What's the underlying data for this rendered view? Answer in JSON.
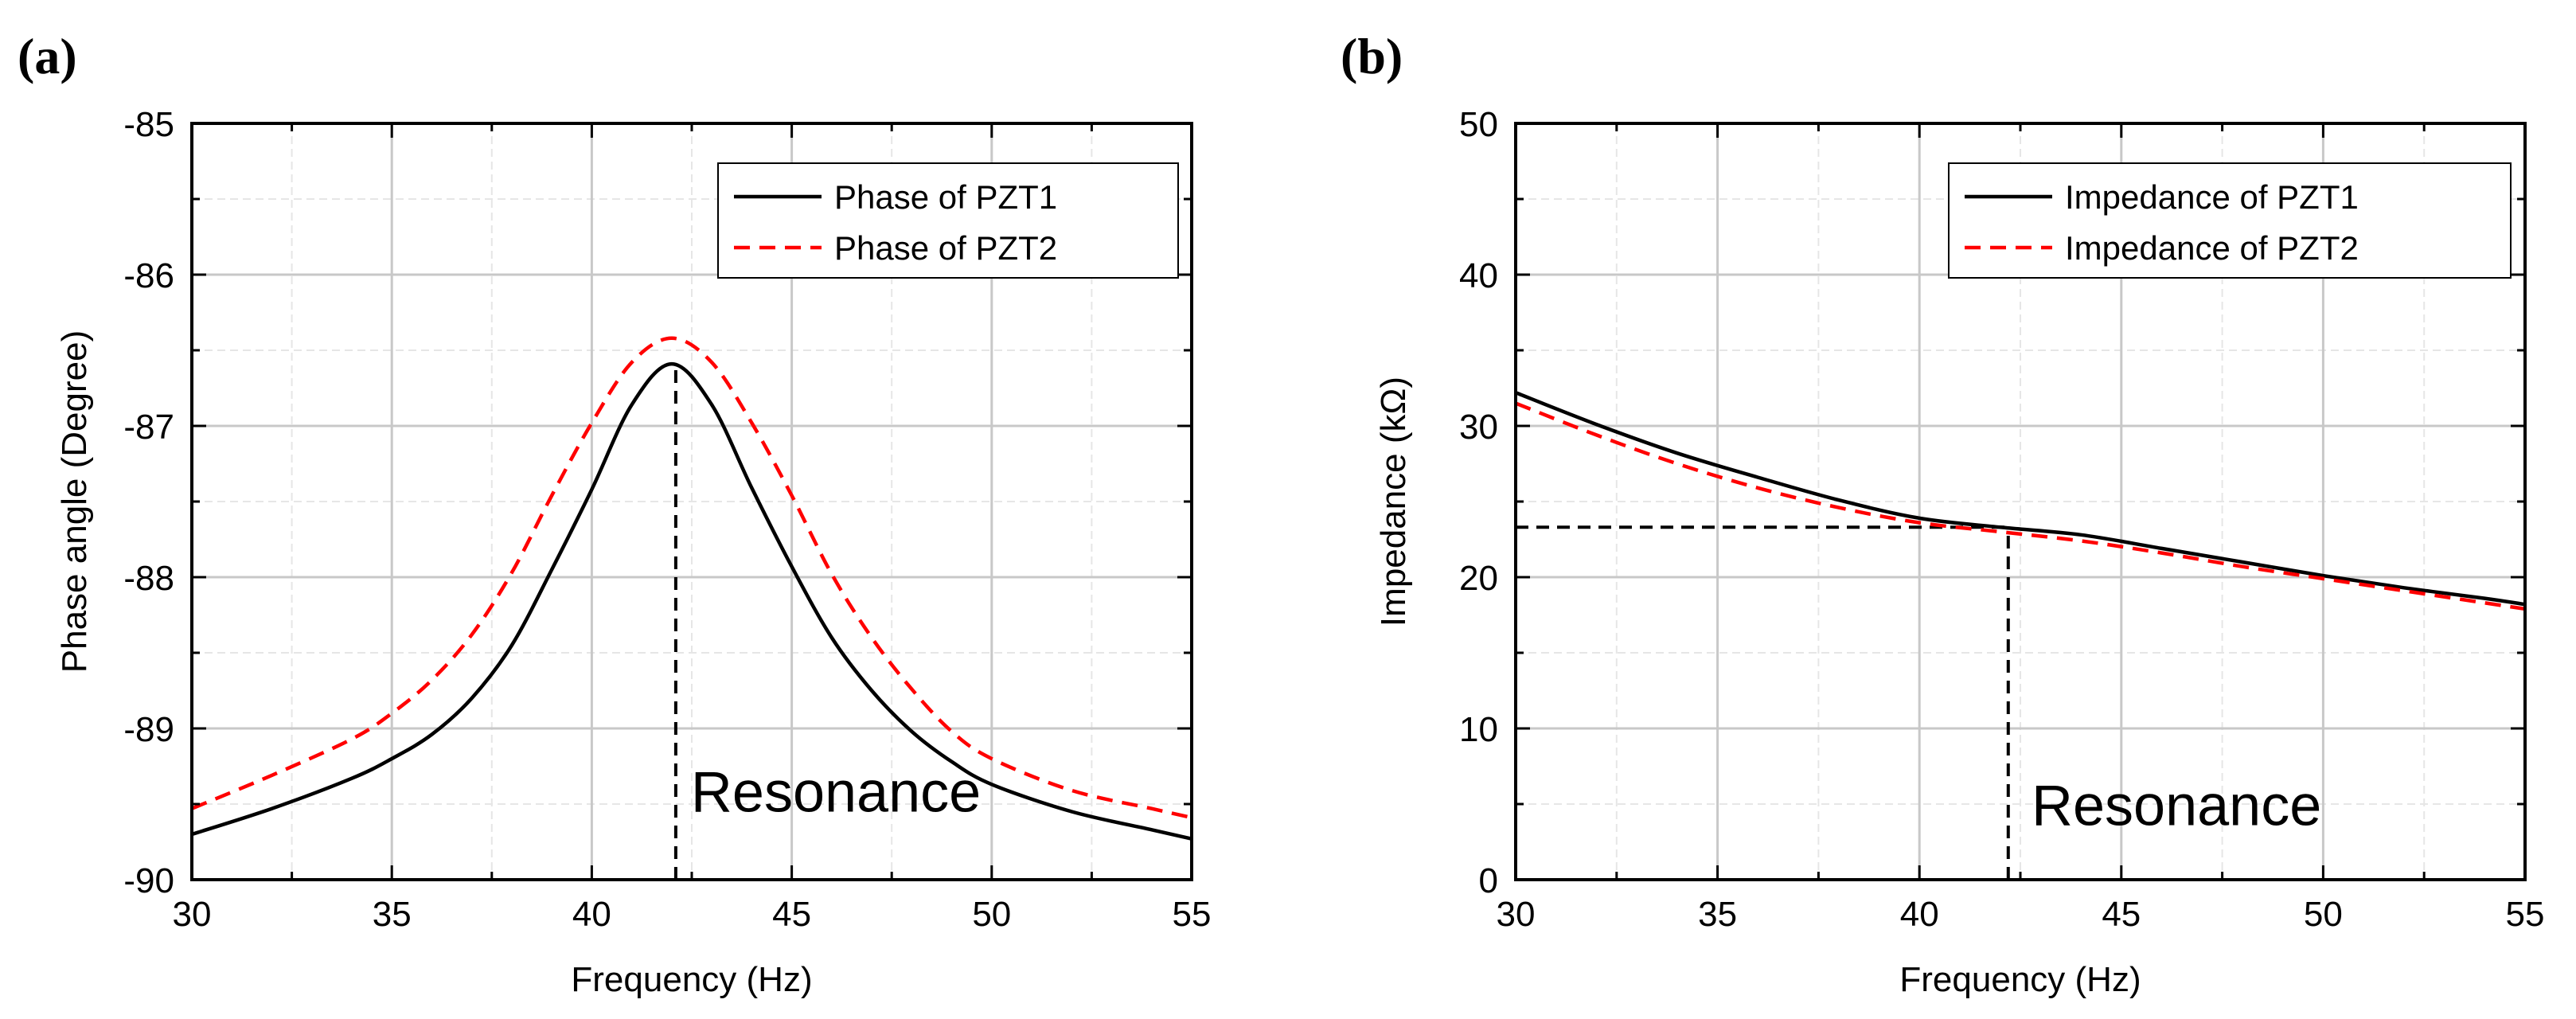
{
  "chart_data": [
    {
      "panel_label": "(a)",
      "type": "line",
      "xlabel": "Frequency (Hz)",
      "ylabel": "Phase angle (Degree)",
      "xlim": [
        30,
        55
      ],
      "ylim": [
        -90,
        -85
      ],
      "xticks": [
        30,
        35,
        40,
        45,
        50,
        55
      ],
      "yticks": [
        -90,
        -89,
        -88,
        -87,
        -86,
        -85
      ],
      "minor_x_step": 2.5,
      "minor_y_step": 0.5,
      "grid": true,
      "legend_position": "top-right",
      "series": [
        {
          "name": "Phase of PZT1",
          "style": "solid",
          "color": "#000000",
          "x": [
            30,
            32,
            34,
            35,
            36,
            37,
            38,
            39,
            40,
            41,
            42,
            43,
            44,
            45,
            46,
            47,
            48,
            49,
            50,
            52,
            54,
            55
          ],
          "values": [
            -89.7,
            -89.53,
            -89.33,
            -89.2,
            -89.04,
            -88.8,
            -88.45,
            -87.95,
            -87.42,
            -86.86,
            -86.59,
            -86.86,
            -87.41,
            -87.93,
            -88.4,
            -88.75,
            -89.02,
            -89.22,
            -89.37,
            -89.55,
            -89.67,
            -89.73
          ]
        },
        {
          "name": "Phase of PZT2",
          "style": "dashed",
          "color": "#ff0000",
          "x": [
            30,
            32,
            34,
            35,
            36,
            37,
            38,
            39,
            40,
            41,
            42,
            43,
            44,
            45,
            46,
            47,
            48,
            49,
            50,
            52,
            54,
            55
          ],
          "values": [
            -89.53,
            -89.31,
            -89.07,
            -88.9,
            -88.68,
            -88.38,
            -87.97,
            -87.46,
            -86.98,
            -86.58,
            -86.42,
            -86.58,
            -86.98,
            -87.46,
            -87.98,
            -88.4,
            -88.74,
            -89.02,
            -89.2,
            -89.41,
            -89.53,
            -89.59
          ]
        }
      ],
      "annotations": [
        {
          "text": "Resonance",
          "x": 42.2,
          "y": -89.55
        }
      ],
      "reference_lines": [
        {
          "type": "vertical",
          "x": 42.1,
          "y_from": -90,
          "y_to": -86.59,
          "style": "dashed",
          "color": "#000000"
        }
      ]
    },
    {
      "panel_label": "(b)",
      "type": "line",
      "xlabel": "Frequency (Hz)",
      "ylabel": "Impedance (kΩ)",
      "xlim": [
        30,
        55
      ],
      "ylim": [
        0,
        50
      ],
      "xticks": [
        30,
        35,
        40,
        45,
        50,
        55
      ],
      "yticks": [
        0,
        10,
        20,
        30,
        40,
        50
      ],
      "minor_x_step": 2.5,
      "minor_y_step": 5,
      "grid": true,
      "legend_position": "top-right",
      "series": [
        {
          "name": "Impedance of PZT1",
          "style": "solid",
          "color": "#000000",
          "x": [
            30,
            32,
            34,
            36,
            38,
            40,
            42,
            44,
            46,
            48,
            50,
            52,
            54,
            55
          ],
          "values": [
            32.2,
            30.1,
            28.2,
            26.6,
            25.1,
            23.9,
            23.3,
            22.8,
            21.9,
            21.0,
            20.1,
            19.3,
            18.6,
            18.2
          ]
        },
        {
          "name": "Impedance of PZT2",
          "style": "dashed",
          "color": "#ff0000",
          "x": [
            30,
            32,
            34,
            36,
            38,
            40,
            42,
            44,
            46,
            48,
            50,
            52,
            54,
            55
          ],
          "values": [
            31.5,
            29.4,
            27.5,
            25.9,
            24.6,
            23.6,
            23.0,
            22.4,
            21.6,
            20.7,
            19.9,
            19.1,
            18.3,
            17.9
          ]
        }
      ],
      "annotations": [
        {
          "text": "Resonance",
          "x": 42.5,
          "y": 3.6
        }
      ],
      "reference_lines": [
        {
          "type": "horizontal",
          "y": 23.3,
          "x_from": 30,
          "x_to": 42.2,
          "style": "dashed",
          "color": "#000000"
        },
        {
          "type": "vertical",
          "x": 42.2,
          "y_from": 0,
          "y_to": 23.3,
          "style": "dashed",
          "color": "#000000"
        }
      ]
    }
  ]
}
